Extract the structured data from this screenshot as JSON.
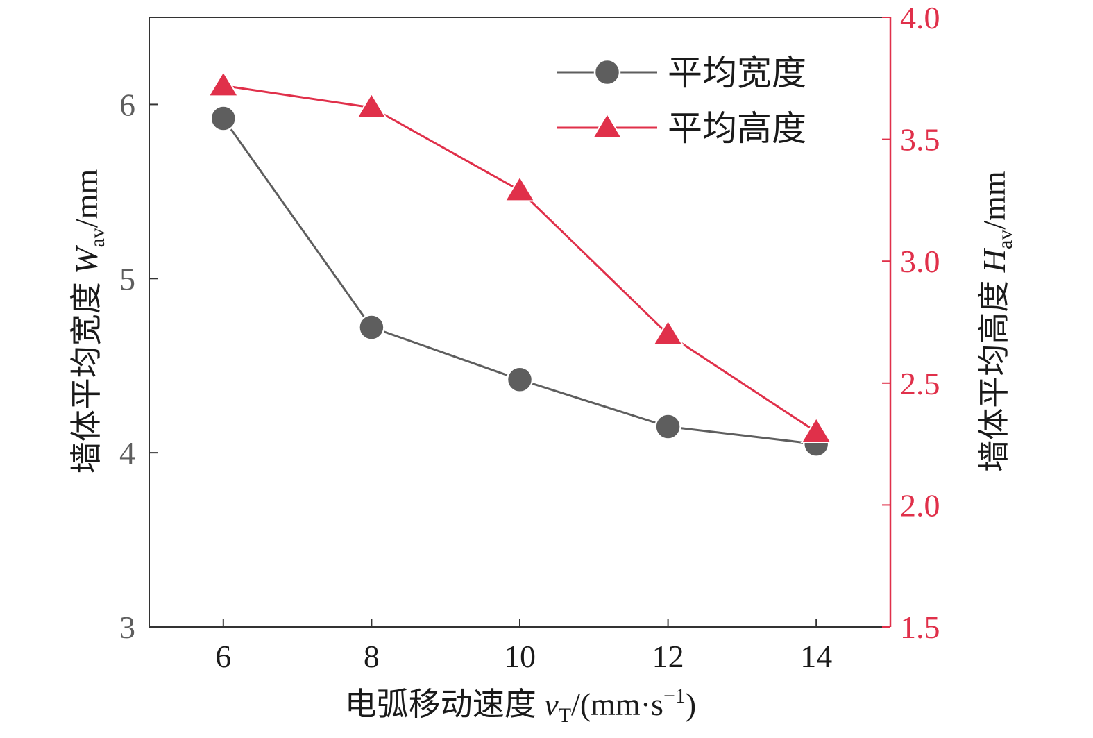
{
  "chart_data": {
    "type": "line",
    "x": [
      6,
      8,
      10,
      12,
      14
    ],
    "xticks": [
      "6",
      "8",
      "10",
      "12",
      "14"
    ],
    "xlim": [
      5,
      15
    ],
    "xlabel": {
      "prefix": "电弧移动速度 ",
      "var": "v",
      "sub": "T",
      "unit": "/(mm·s",
      "sup": "−1",
      "close": ")"
    },
    "ylim_left": [
      3,
      6.5
    ],
    "yticks_left": [
      "3",
      "4",
      "5",
      "6"
    ],
    "ylabel_left": {
      "prefix": "墙体平均宽度 ",
      "var": "W",
      "sub": "av",
      "unit": "/mm"
    },
    "ylim_right": [
      1.5,
      4.0
    ],
    "yticks_right": [
      "1.5",
      "2.0",
      "2.5",
      "3.0",
      "3.5",
      "4.0"
    ],
    "ylabel_right": {
      "prefix": "墙体平均高度 ",
      "var": "H",
      "sub": "av",
      "unit": "/mm"
    },
    "grid": false,
    "legend": "top-right",
    "series": [
      {
        "name": "平均宽度",
        "axis": "left",
        "marker": "circle",
        "color": "#5e5e5e",
        "values": [
          5.92,
          4.72,
          4.42,
          4.15,
          4.05
        ]
      },
      {
        "name": "平均高度",
        "axis": "right",
        "marker": "triangle",
        "color": "#e0304a",
        "values": [
          3.72,
          3.63,
          3.29,
          2.7,
          2.3
        ]
      }
    ]
  }
}
